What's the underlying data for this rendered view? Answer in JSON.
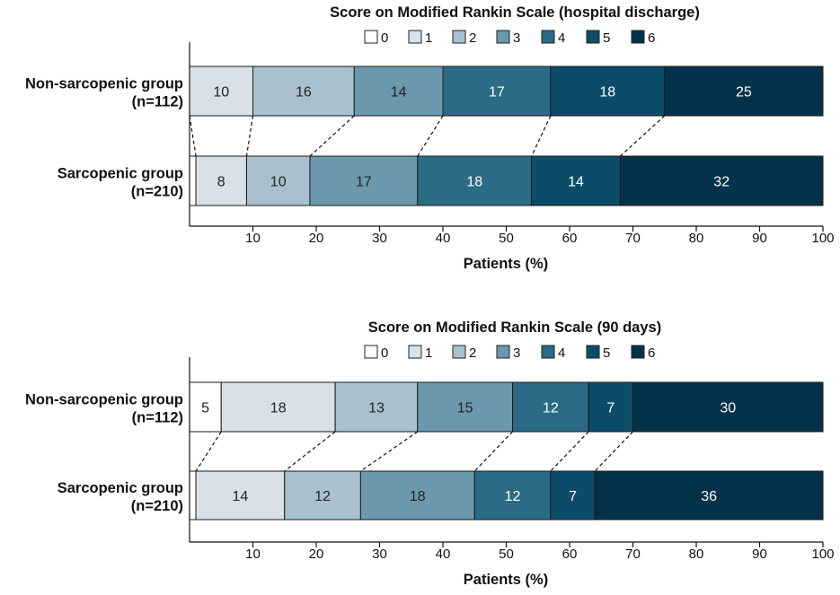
{
  "palette": [
    "#ffffff",
    "#d7e1e7",
    "#a9c1ce",
    "#6b98ad",
    "#2b6b86",
    "#0d4c68",
    "#04324a"
  ],
  "chart_data": [
    {
      "type": "bar",
      "stacked": true,
      "orientation": "horizontal",
      "title": "Score on Modified Rankin Scale (hospital discharge)",
      "xlabel": "Patients (%)",
      "xlim": [
        0,
        100
      ],
      "xticks": [
        10,
        20,
        30,
        40,
        50,
        60,
        70,
        80,
        90,
        100
      ],
      "legend": [
        "0",
        "1",
        "2",
        "3",
        "4",
        "5",
        "6"
      ],
      "categories": [
        {
          "line1": "Non-sarcopenic group",
          "line2": "(n=112)"
        },
        {
          "line1": "Sarcopenic group",
          "line2": "(n=210)"
        }
      ],
      "series": [
        {
          "name": "0",
          "values": [
            0,
            1
          ]
        },
        {
          "name": "1",
          "values": [
            10,
            8
          ]
        },
        {
          "name": "2",
          "values": [
            16,
            10
          ]
        },
        {
          "name": "3",
          "values": [
            14,
            17
          ]
        },
        {
          "name": "4",
          "values": [
            17,
            18
          ]
        },
        {
          "name": "5",
          "values": [
            18,
            14
          ]
        },
        {
          "name": "6",
          "values": [
            25,
            32
          ]
        }
      ]
    },
    {
      "type": "bar",
      "stacked": true,
      "orientation": "horizontal",
      "title": "Score on Modified Rankin Scale (90 days)",
      "xlabel": "Patients (%)",
      "xlim": [
        0,
        100
      ],
      "xticks": [
        10,
        20,
        30,
        40,
        50,
        60,
        70,
        80,
        90,
        100
      ],
      "legend": [
        "0",
        "1",
        "2",
        "3",
        "4",
        "5",
        "6"
      ],
      "categories": [
        {
          "line1": "Non-sarcopenic group",
          "line2": "(n=112)"
        },
        {
          "line1": "Sarcopenic group",
          "line2": "(n=210)"
        }
      ],
      "series": [
        {
          "name": "0",
          "values": [
            5,
            1
          ]
        },
        {
          "name": "1",
          "values": [
            18,
            14
          ]
        },
        {
          "name": "2",
          "values": [
            13,
            12
          ]
        },
        {
          "name": "3",
          "values": [
            15,
            18
          ]
        },
        {
          "name": "4",
          "values": [
            12,
            12
          ]
        },
        {
          "name": "5",
          "values": [
            7,
            7
          ]
        },
        {
          "name": "6",
          "values": [
            30,
            36
          ]
        }
      ]
    }
  ]
}
